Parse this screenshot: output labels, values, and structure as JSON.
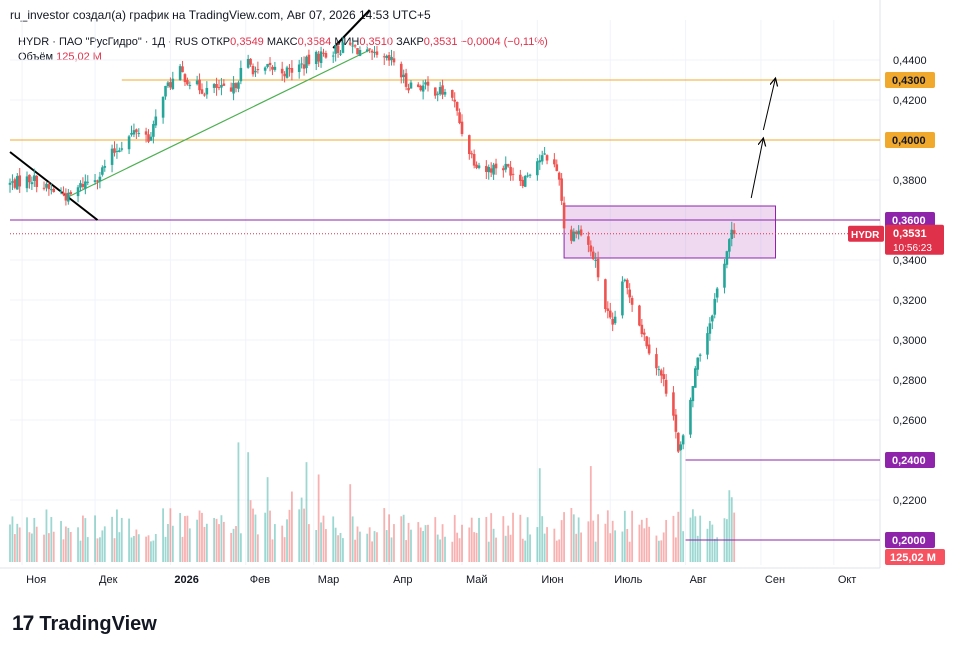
{
  "header": {
    "text": "ru_investor создал(а) график на TradingView.com, Авг 07, 2026 14:53 UTC+5"
  },
  "legend": {
    "symbol": "HYDR · ПАО \"РусГидро\" · 1Д · RUS",
    "open_label": "ОТКР",
    "open": "0,3549",
    "high_label": "МАКС",
    "high": "0,3584",
    "low_label": "МИН",
    "low": "0,3510",
    "close_label": "ЗАКР",
    "close": "0,3531",
    "change": "−0,0004 (−0,11%)",
    "volume_label": "Объём",
    "volume": "125,02 M"
  },
  "footer": {
    "brand": "TradingView",
    "logo": "17"
  },
  "colors": {
    "up": "#26a69a",
    "down": "#ef5350",
    "orange": "#f0a92c",
    "purple": "#8e24aa",
    "price": "#e0314a",
    "trend_green": "#4caf50"
  },
  "chart_data": {
    "type": "candlestick",
    "symbol": "HYDR",
    "ylim": [
      0.19,
      0.46
    ],
    "y_ticks": [
      "0,4400",
      "0,4200",
      "0,3800",
      "0,3400",
      "0,3200",
      "0,3000",
      "0,2800",
      "0,2600",
      "0,2200"
    ],
    "y_ticks_values": [
      0.44,
      0.42,
      0.38,
      0.34,
      0.32,
      0.3,
      0.28,
      0.26,
      0.22
    ],
    "x_labels": [
      "Ноя",
      "Дек",
      "2026",
      "Фев",
      "Мар",
      "Апр",
      "Май",
      "Июн",
      "Июль",
      "Авг",
      "Сен",
      "Окт"
    ],
    "x_label_dates": [
      "2025-11-01",
      "2025-12-01",
      "2026-01-01",
      "2026-02-01",
      "2026-03-01",
      "2026-04-01",
      "2026-05-01",
      "2026-06-01",
      "2026-07-01",
      "2026-08-01",
      "2026-09-01",
      "2026-10-01"
    ],
    "x_range": [
      "2025-10-27",
      "2026-10-20"
    ],
    "price_path": [
      [
        "2025-10-27",
        0.378
      ],
      [
        "2025-11-05",
        0.381
      ],
      [
        "2025-11-12",
        0.375
      ],
      [
        "2025-11-17",
        0.374
      ],
      [
        "2025-11-20",
        0.371
      ],
      [
        "2025-11-26",
        0.378
      ],
      [
        "2025-12-03",
        0.383
      ],
      [
        "2025-12-08",
        0.393
      ],
      [
        "2025-12-12",
        0.398
      ],
      [
        "2025-12-18",
        0.405
      ],
      [
        "2025-12-24",
        0.401
      ],
      [
        "2025-12-29",
        0.424
      ],
      [
        "2026-01-05",
        0.434
      ],
      [
        "2026-01-10",
        0.428
      ],
      [
        "2026-01-15",
        0.425
      ],
      [
        "2026-01-20",
        0.426
      ],
      [
        "2026-01-26",
        0.423
      ],
      [
        "2026-02-01",
        0.44
      ],
      [
        "2026-02-06",
        0.433
      ],
      [
        "2026-02-11",
        0.436
      ],
      [
        "2026-02-18",
        0.434
      ],
      [
        "2026-02-25",
        0.438
      ],
      [
        "2026-03-03",
        0.442
      ],
      [
        "2026-03-10",
        0.445
      ],
      [
        "2026-03-16",
        0.447
      ],
      [
        "2026-03-21",
        0.444
      ],
      [
        "2026-03-28",
        0.44
      ],
      [
        "2026-04-03",
        0.439
      ],
      [
        "2026-04-08",
        0.428
      ],
      [
        "2026-04-14",
        0.427
      ],
      [
        "2026-04-20",
        0.425
      ],
      [
        "2026-04-27",
        0.422
      ],
      [
        "2026-05-02",
        0.4
      ],
      [
        "2026-05-06",
        0.39
      ],
      [
        "2026-05-11",
        0.385
      ],
      [
        "2026-05-15",
        0.387
      ],
      [
        "2026-05-20",
        0.386
      ],
      [
        "2026-05-26",
        0.38
      ],
      [
        "2026-06-01",
        0.39
      ],
      [
        "2026-06-06",
        0.392
      ],
      [
        "2026-06-10",
        0.382
      ],
      [
        "2026-06-13",
        0.345
      ],
      [
        "2026-06-17",
        0.356
      ],
      [
        "2026-06-21",
        0.35
      ],
      [
        "2026-06-25",
        0.338
      ],
      [
        "2026-06-28",
        0.32
      ],
      [
        "2026-07-02",
        0.305
      ],
      [
        "2026-07-06",
        0.33
      ],
      [
        "2026-07-10",
        0.32
      ],
      [
        "2026-07-14",
        0.305
      ],
      [
        "2026-07-19",
        0.29
      ],
      [
        "2026-07-22",
        0.282
      ],
      [
        "2026-07-27",
        0.265
      ],
      [
        "2026-07-29",
        0.243
      ],
      [
        "2026-07-31",
        0.25
      ],
      [
        "2026-08-03",
        0.27
      ],
      [
        "2026-08-06",
        0.292
      ],
      [
        "2026-08-09",
        0.299
      ],
      [
        "2026-08-13",
        0.32
      ],
      [
        "2026-08-18",
        0.345
      ],
      [
        "2026-08-21",
        0.358
      ],
      [
        "2026-08-23",
        0.3531
      ]
    ],
    "volume_max": 125.02,
    "horizontal_levels": [
      {
        "price": 0.43,
        "label": "0,4300",
        "color": "#f0a92c",
        "from": "2025-12-12"
      },
      {
        "price": 0.4,
        "label": "0,4000",
        "color": "#f0a92c",
        "from": "2025-10-27"
      },
      {
        "price": 0.36,
        "label": "0,3600",
        "color": "#8e24aa",
        "from": "2025-10-27"
      },
      {
        "price": 0.24,
        "label": "0,2400",
        "color": "#8e24aa",
        "from": "2026-08-01"
      },
      {
        "price": 0.2,
        "label": "0,2000",
        "color": "#8e24aa",
        "from": "2026-08-01"
      }
    ],
    "current_price": {
      "price": 0.3531,
      "symbol": "HYDR",
      "label": "0,3531",
      "countdown": "10:56:23"
    },
    "volume_label": {
      "price": 0.193,
      "label": "125,02 M"
    },
    "zone": {
      "from": "2026-06-12",
      "to": "2026-09-07",
      "top": 0.367,
      "bottom": 0.341
    },
    "trend_lines": [
      {
        "from": [
          "2025-11-19",
          0.371
        ],
        "to": [
          "2026-03-24",
          0.445
        ],
        "color": "#4caf50"
      },
      {
        "from": [
          "2025-10-27",
          0.394
        ],
        "to": [
          "2025-12-02",
          0.36
        ],
        "color": "#000000"
      },
      {
        "from": [
          "2026-03-09",
          0.446
        ],
        "to": [
          "2026-03-24",
          0.465
        ],
        "color": "#000000"
      }
    ],
    "arrows": [
      {
        "from": [
          "2026-08-28",
          0.371
        ],
        "to": [
          "2026-09-02",
          0.401
        ]
      },
      {
        "from": [
          "2026-09-02",
          0.405
        ],
        "to": [
          "2026-09-07",
          0.431
        ]
      }
    ]
  }
}
